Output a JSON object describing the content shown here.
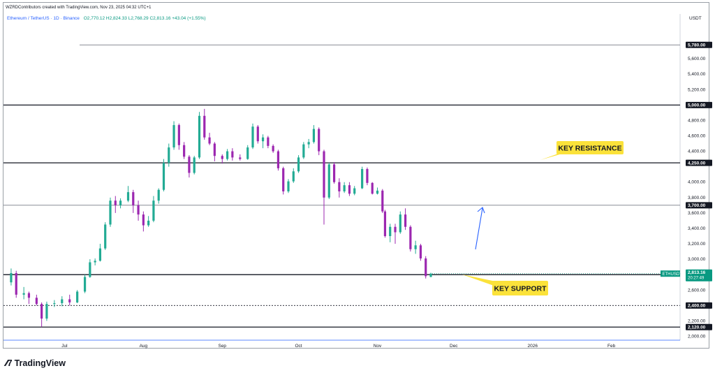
{
  "header": {
    "credit": "WZRDContributors created with TradingView.com, Nov 23, 2025 04:32 UTC+1"
  },
  "legend": {
    "symbol": "Ethereum / TetherUS · 1D · Binance",
    "ohlc": "O2,770.12 H2,824.33 L2,768.29 C2,813.16 +43.04 (+1.55%)"
  },
  "price_axis": {
    "unit": "USDT",
    "ticks": [
      "5,600.00",
      "5,400.00",
      "5,200.00",
      "4,800.00",
      "4,600.00",
      "4,400.00",
      "4,000.00",
      "3,800.00",
      "3,600.00",
      "3,400.00",
      "3,200.00",
      "3,000.00",
      "2,600.00",
      "2,200.00",
      "2,000.00"
    ]
  },
  "time_axis": {
    "ticks": [
      "Jul",
      "Aug",
      "Sep",
      "Oct",
      "Nov",
      "Dec",
      "2026",
      "Feb"
    ]
  },
  "levels": [
    {
      "label": "5,780.00",
      "value": 5780,
      "style": "thin"
    },
    {
      "label": "5,000.00",
      "value": 5000,
      "style": "bold"
    },
    {
      "label": "4,250.00",
      "value": 4250,
      "style": "bold"
    },
    {
      "label": "3,700.00",
      "value": 3700,
      "style": "thin"
    },
    {
      "label": "2,800.00",
      "value": 2800,
      "style": "bold"
    },
    {
      "label": "2,400.00",
      "value": 2400,
      "style": "dashed"
    },
    {
      "label": "2,120.00",
      "value": 2120,
      "style": "bold"
    }
  ],
  "last_price": {
    "ticker": "ETHUSDT",
    "price": "2,813.16",
    "countdown": "20:27:49",
    "color": "#089981"
  },
  "annotations": {
    "resistance": "KEY RESISTANCE",
    "support": "KEY SUPPORT",
    "box_color": "#fbe23a"
  },
  "colors": {
    "up": "#22ab94",
    "down": "#9c27b0",
    "arrow": "#2962ff"
  },
  "footer": {
    "brand": "TradingView"
  },
  "chart_data": {
    "type": "candlestick",
    "symbol": "ETHUSDT",
    "timeframe": "1D",
    "ylim": [
      1950,
      6000
    ],
    "xlim": [
      "2025-06-07",
      "2026-02-28"
    ],
    "ohlc": [
      {
        "date": "2025-06-10",
        "o": 2700,
        "h": 2880,
        "l": 2660,
        "c": 2820
      },
      {
        "date": "2025-06-12",
        "o": 2820,
        "h": 2850,
        "l": 2500,
        "c": 2540
      },
      {
        "date": "2025-06-15",
        "o": 2540,
        "h": 2640,
        "l": 2480,
        "c": 2560
      },
      {
        "date": "2025-06-17",
        "o": 2560,
        "h": 2580,
        "l": 2420,
        "c": 2500
      },
      {
        "date": "2025-06-20",
        "o": 2500,
        "h": 2540,
        "l": 2400,
        "c": 2420
      },
      {
        "date": "2025-06-22",
        "o": 2420,
        "h": 2440,
        "l": 2120,
        "c": 2230
      },
      {
        "date": "2025-06-24",
        "o": 2230,
        "h": 2450,
        "l": 2200,
        "c": 2420
      },
      {
        "date": "2025-06-27",
        "o": 2420,
        "h": 2470,
        "l": 2380,
        "c": 2430
      },
      {
        "date": "2025-06-30",
        "o": 2430,
        "h": 2520,
        "l": 2390,
        "c": 2480
      },
      {
        "date": "2025-07-03",
        "o": 2480,
        "h": 2540,
        "l": 2400,
        "c": 2440
      },
      {
        "date": "2025-07-06",
        "o": 2440,
        "h": 2600,
        "l": 2430,
        "c": 2580
      },
      {
        "date": "2025-07-09",
        "o": 2580,
        "h": 2800,
        "l": 2560,
        "c": 2770
      },
      {
        "date": "2025-07-11",
        "o": 2770,
        "h": 3000,
        "l": 2760,
        "c": 2960
      },
      {
        "date": "2025-07-13",
        "o": 2960,
        "h": 3010,
        "l": 2920,
        "c": 2980
      },
      {
        "date": "2025-07-15",
        "o": 2980,
        "h": 3200,
        "l": 2970,
        "c": 3140
      },
      {
        "date": "2025-07-17",
        "o": 3140,
        "h": 3480,
        "l": 3120,
        "c": 3450
      },
      {
        "date": "2025-07-19",
        "o": 3450,
        "h": 3800,
        "l": 3420,
        "c": 3760
      },
      {
        "date": "2025-07-21",
        "o": 3760,
        "h": 3820,
        "l": 3600,
        "c": 3700
      },
      {
        "date": "2025-07-23",
        "o": 3700,
        "h": 3790,
        "l": 3660,
        "c": 3760
      },
      {
        "date": "2025-07-26",
        "o": 3760,
        "h": 3950,
        "l": 3740,
        "c": 3870
      },
      {
        "date": "2025-07-28",
        "o": 3870,
        "h": 3900,
        "l": 3600,
        "c": 3700
      },
      {
        "date": "2025-07-30",
        "o": 3700,
        "h": 3760,
        "l": 3500,
        "c": 3580
      },
      {
        "date": "2025-08-01",
        "o": 3580,
        "h": 3620,
        "l": 3360,
        "c": 3440
      },
      {
        "date": "2025-08-03",
        "o": 3440,
        "h": 3560,
        "l": 3420,
        "c": 3500
      },
      {
        "date": "2025-08-05",
        "o": 3500,
        "h": 3820,
        "l": 3480,
        "c": 3760
      },
      {
        "date": "2025-08-07",
        "o": 3760,
        "h": 3920,
        "l": 3720,
        "c": 3900
      },
      {
        "date": "2025-08-09",
        "o": 3900,
        "h": 4300,
        "l": 3880,
        "c": 4250
      },
      {
        "date": "2025-08-11",
        "o": 4250,
        "h": 4500,
        "l": 4200,
        "c": 4450
      },
      {
        "date": "2025-08-13",
        "o": 4450,
        "h": 4790,
        "l": 4420,
        "c": 4740
      },
      {
        "date": "2025-08-15",
        "o": 4740,
        "h": 4760,
        "l": 4420,
        "c": 4480
      },
      {
        "date": "2025-08-17",
        "o": 4480,
        "h": 4520,
        "l": 4300,
        "c": 4330
      },
      {
        "date": "2025-08-19",
        "o": 4330,
        "h": 4350,
        "l": 4060,
        "c": 4120
      },
      {
        "date": "2025-08-21",
        "o": 4120,
        "h": 4340,
        "l": 4100,
        "c": 4320
      },
      {
        "date": "2025-08-23",
        "o": 4320,
        "h": 4910,
        "l": 4300,
        "c": 4860
      },
      {
        "date": "2025-08-25",
        "o": 4860,
        "h": 4950,
        "l": 4550,
        "c": 4580
      },
      {
        "date": "2025-08-27",
        "o": 4580,
        "h": 4640,
        "l": 4480,
        "c": 4500
      },
      {
        "date": "2025-08-29",
        "o": 4500,
        "h": 4520,
        "l": 4270,
        "c": 4340
      },
      {
        "date": "2025-09-01",
        "o": 4340,
        "h": 4360,
        "l": 4240,
        "c": 4300
      },
      {
        "date": "2025-09-03",
        "o": 4300,
        "h": 4430,
        "l": 4280,
        "c": 4400
      },
      {
        "date": "2025-09-05",
        "o": 4400,
        "h": 4440,
        "l": 4280,
        "c": 4320
      },
      {
        "date": "2025-09-08",
        "o": 4320,
        "h": 4360,
        "l": 4280,
        "c": 4300
      },
      {
        "date": "2025-09-11",
        "o": 4300,
        "h": 4480,
        "l": 4290,
        "c": 4450
      },
      {
        "date": "2025-09-13",
        "o": 4450,
        "h": 4760,
        "l": 4430,
        "c": 4720
      },
      {
        "date": "2025-09-15",
        "o": 4720,
        "h": 4740,
        "l": 4500,
        "c": 4530
      },
      {
        "date": "2025-09-17",
        "o": 4530,
        "h": 4620,
        "l": 4440,
        "c": 4580
      },
      {
        "date": "2025-09-19",
        "o": 4580,
        "h": 4600,
        "l": 4440,
        "c": 4470
      },
      {
        "date": "2025-09-21",
        "o": 4470,
        "h": 4490,
        "l": 4380,
        "c": 4400
      },
      {
        "date": "2025-09-23",
        "o": 4400,
        "h": 4420,
        "l": 4150,
        "c": 4180
      },
      {
        "date": "2025-09-25",
        "o": 4180,
        "h": 4200,
        "l": 3840,
        "c": 3880
      },
      {
        "date": "2025-09-27",
        "o": 3880,
        "h": 4040,
        "l": 3860,
        "c": 4010
      },
      {
        "date": "2025-09-29",
        "o": 4010,
        "h": 4180,
        "l": 3990,
        "c": 4140
      },
      {
        "date": "2025-10-01",
        "o": 4140,
        "h": 4350,
        "l": 4120,
        "c": 4320
      },
      {
        "date": "2025-10-03",
        "o": 4320,
        "h": 4520,
        "l": 4300,
        "c": 4490
      },
      {
        "date": "2025-10-05",
        "o": 4490,
        "h": 4560,
        "l": 4440,
        "c": 4520
      },
      {
        "date": "2025-10-07",
        "o": 4520,
        "h": 4740,
        "l": 4500,
        "c": 4690
      },
      {
        "date": "2025-10-09",
        "o": 4690,
        "h": 4710,
        "l": 4350,
        "c": 4400
      },
      {
        "date": "2025-10-11",
        "o": 4400,
        "h": 4420,
        "l": 3450,
        "c": 3800
      },
      {
        "date": "2025-10-13",
        "o": 3800,
        "h": 4250,
        "l": 3780,
        "c": 4230
      },
      {
        "date": "2025-10-15",
        "o": 4230,
        "h": 4260,
        "l": 3980,
        "c": 4000
      },
      {
        "date": "2025-10-17",
        "o": 4000,
        "h": 4050,
        "l": 3800,
        "c": 3880
      },
      {
        "date": "2025-10-19",
        "o": 3880,
        "h": 4000,
        "l": 3860,
        "c": 3960
      },
      {
        "date": "2025-10-21",
        "o": 3960,
        "h": 4000,
        "l": 3820,
        "c": 3850
      },
      {
        "date": "2025-10-23",
        "o": 3850,
        "h": 3950,
        "l": 3830,
        "c": 3920
      },
      {
        "date": "2025-10-26",
        "o": 3920,
        "h": 4200,
        "l": 3910,
        "c": 4170
      },
      {
        "date": "2025-10-28",
        "o": 4170,
        "h": 4190,
        "l": 3960,
        "c": 3990
      },
      {
        "date": "2025-10-30",
        "o": 3990,
        "h": 4000,
        "l": 3840,
        "c": 3850
      },
      {
        "date": "2025-11-01",
        "o": 3850,
        "h": 3930,
        "l": 3840,
        "c": 3890
      },
      {
        "date": "2025-11-03",
        "o": 3890,
        "h": 3910,
        "l": 3600,
        "c": 3620
      },
      {
        "date": "2025-11-04",
        "o": 3620,
        "h": 3640,
        "l": 3280,
        "c": 3300
      },
      {
        "date": "2025-11-06",
        "o": 3300,
        "h": 3460,
        "l": 3220,
        "c": 3420
      },
      {
        "date": "2025-11-08",
        "o": 3420,
        "h": 3460,
        "l": 3200,
        "c": 3350
      },
      {
        "date": "2025-11-10",
        "o": 3350,
        "h": 3620,
        "l": 3330,
        "c": 3580
      },
      {
        "date": "2025-11-12",
        "o": 3580,
        "h": 3660,
        "l": 3380,
        "c": 3420
      },
      {
        "date": "2025-11-14",
        "o": 3420,
        "h": 3440,
        "l": 3100,
        "c": 3130
      },
      {
        "date": "2025-11-16",
        "o": 3130,
        "h": 3240,
        "l": 3070,
        "c": 3180
      },
      {
        "date": "2025-11-18",
        "o": 3180,
        "h": 3200,
        "l": 2980,
        "c": 3010
      },
      {
        "date": "2025-11-20",
        "o": 3010,
        "h": 3040,
        "l": 2750,
        "c": 2780
      },
      {
        "date": "2025-11-22",
        "o": 2770,
        "h": 2824,
        "l": 2768,
        "c": 2813
      }
    ]
  }
}
